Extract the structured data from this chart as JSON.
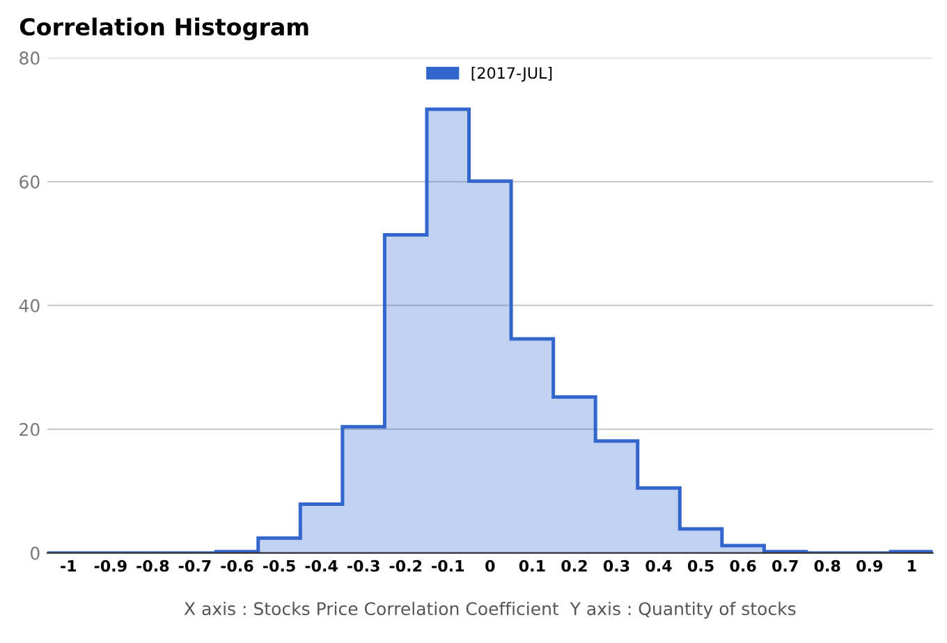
{
  "chart_data": {
    "type": "histogram",
    "title": "Correlation Histogram",
    "xlabel": "X axis : Stocks Price Correlation Coefficient  Y axis : Quantity of stocks",
    "bins": [
      -1.05,
      -0.95,
      -0.85,
      -0.75,
      -0.65,
      -0.55,
      -0.45,
      -0.35,
      -0.25,
      -0.15,
      -0.05,
      0.05,
      0.15,
      0.25,
      0.35,
      0.45,
      0.55,
      0.65,
      0.75,
      0.85,
      0.95,
      1.05
    ],
    "series": [
      {
        "name": "[2017-JUL]",
        "color": "#3366cc",
        "values": [
          0,
          0,
          0,
          0,
          0.2,
          2.4,
          7.9,
          20.4,
          51.4,
          71.7,
          60.1,
          34.6,
          25.2,
          18.1,
          10.5,
          3.9,
          1.2,
          0.2,
          0,
          0,
          0.2
        ]
      }
    ],
    "xlim": [
      -1.05,
      1.05
    ],
    "xticks": [
      -1,
      -0.9,
      -0.8,
      -0.7,
      -0.6,
      -0.5,
      -0.4,
      -0.3,
      -0.2,
      -0.1,
      0,
      0.1,
      0.2,
      0.3,
      0.4,
      0.5,
      0.6,
      0.7,
      0.8,
      0.9,
      1
    ],
    "ylim": [
      0,
      80
    ],
    "yticks": [
      0,
      20,
      40,
      60,
      80
    ],
    "grid": "y",
    "legend": "top"
  }
}
